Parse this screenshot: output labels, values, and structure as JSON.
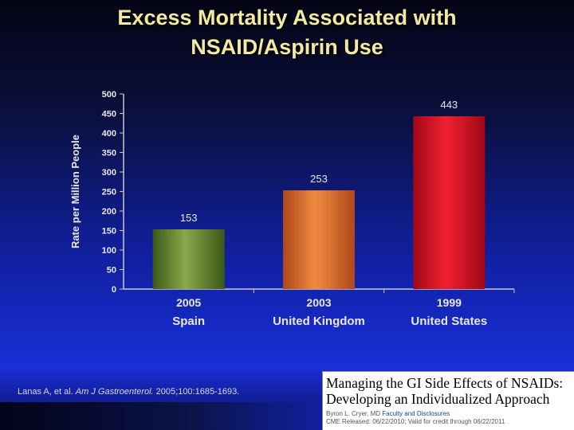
{
  "slide": {
    "title_line1": "Excess Mortality Associated with",
    "title_line2": "NSAID/Aspirin Use",
    "citation_authors": "Lanas A, et al.",
    "citation_journal": "Am J Gastroenterol.",
    "citation_ref": "2005;100:1685-1693."
  },
  "cme": {
    "line1": "Managing the GI Side Effects of NSAIDs:",
    "line2": "Developing an Individualized Approach",
    "author": "Byron L. Cryer, MD",
    "link": "Faculty and Disclosures",
    "dates": "CME Released: 06/22/2010; Valid for credit through 06/22/2011"
  },
  "chart_data": {
    "type": "bar",
    "title": "Excess Mortality Associated with NSAID/Aspirin Use",
    "ylabel": "Rate per Million People",
    "xlabel": "",
    "ylim": [
      0,
      500
    ],
    "yticks": [
      0,
      50,
      100,
      150,
      200,
      250,
      300,
      350,
      400,
      450,
      500
    ],
    "categories": [
      {
        "year": "2005",
        "country": "Spain",
        "value": 153,
        "label": "153",
        "color_top": "#8aa84a",
        "color_bottom": "#3c5a18"
      },
      {
        "year": "2003",
        "country": "United Kingdom",
        "value": 253,
        "label": "253",
        "color_top": "#f08a40",
        "color_bottom": "#b0481a"
      },
      {
        "year": "1999",
        "country": "United States",
        "value": 443,
        "label": "443",
        "color_top": "#f02030",
        "color_bottom": "#a00818"
      }
    ]
  }
}
